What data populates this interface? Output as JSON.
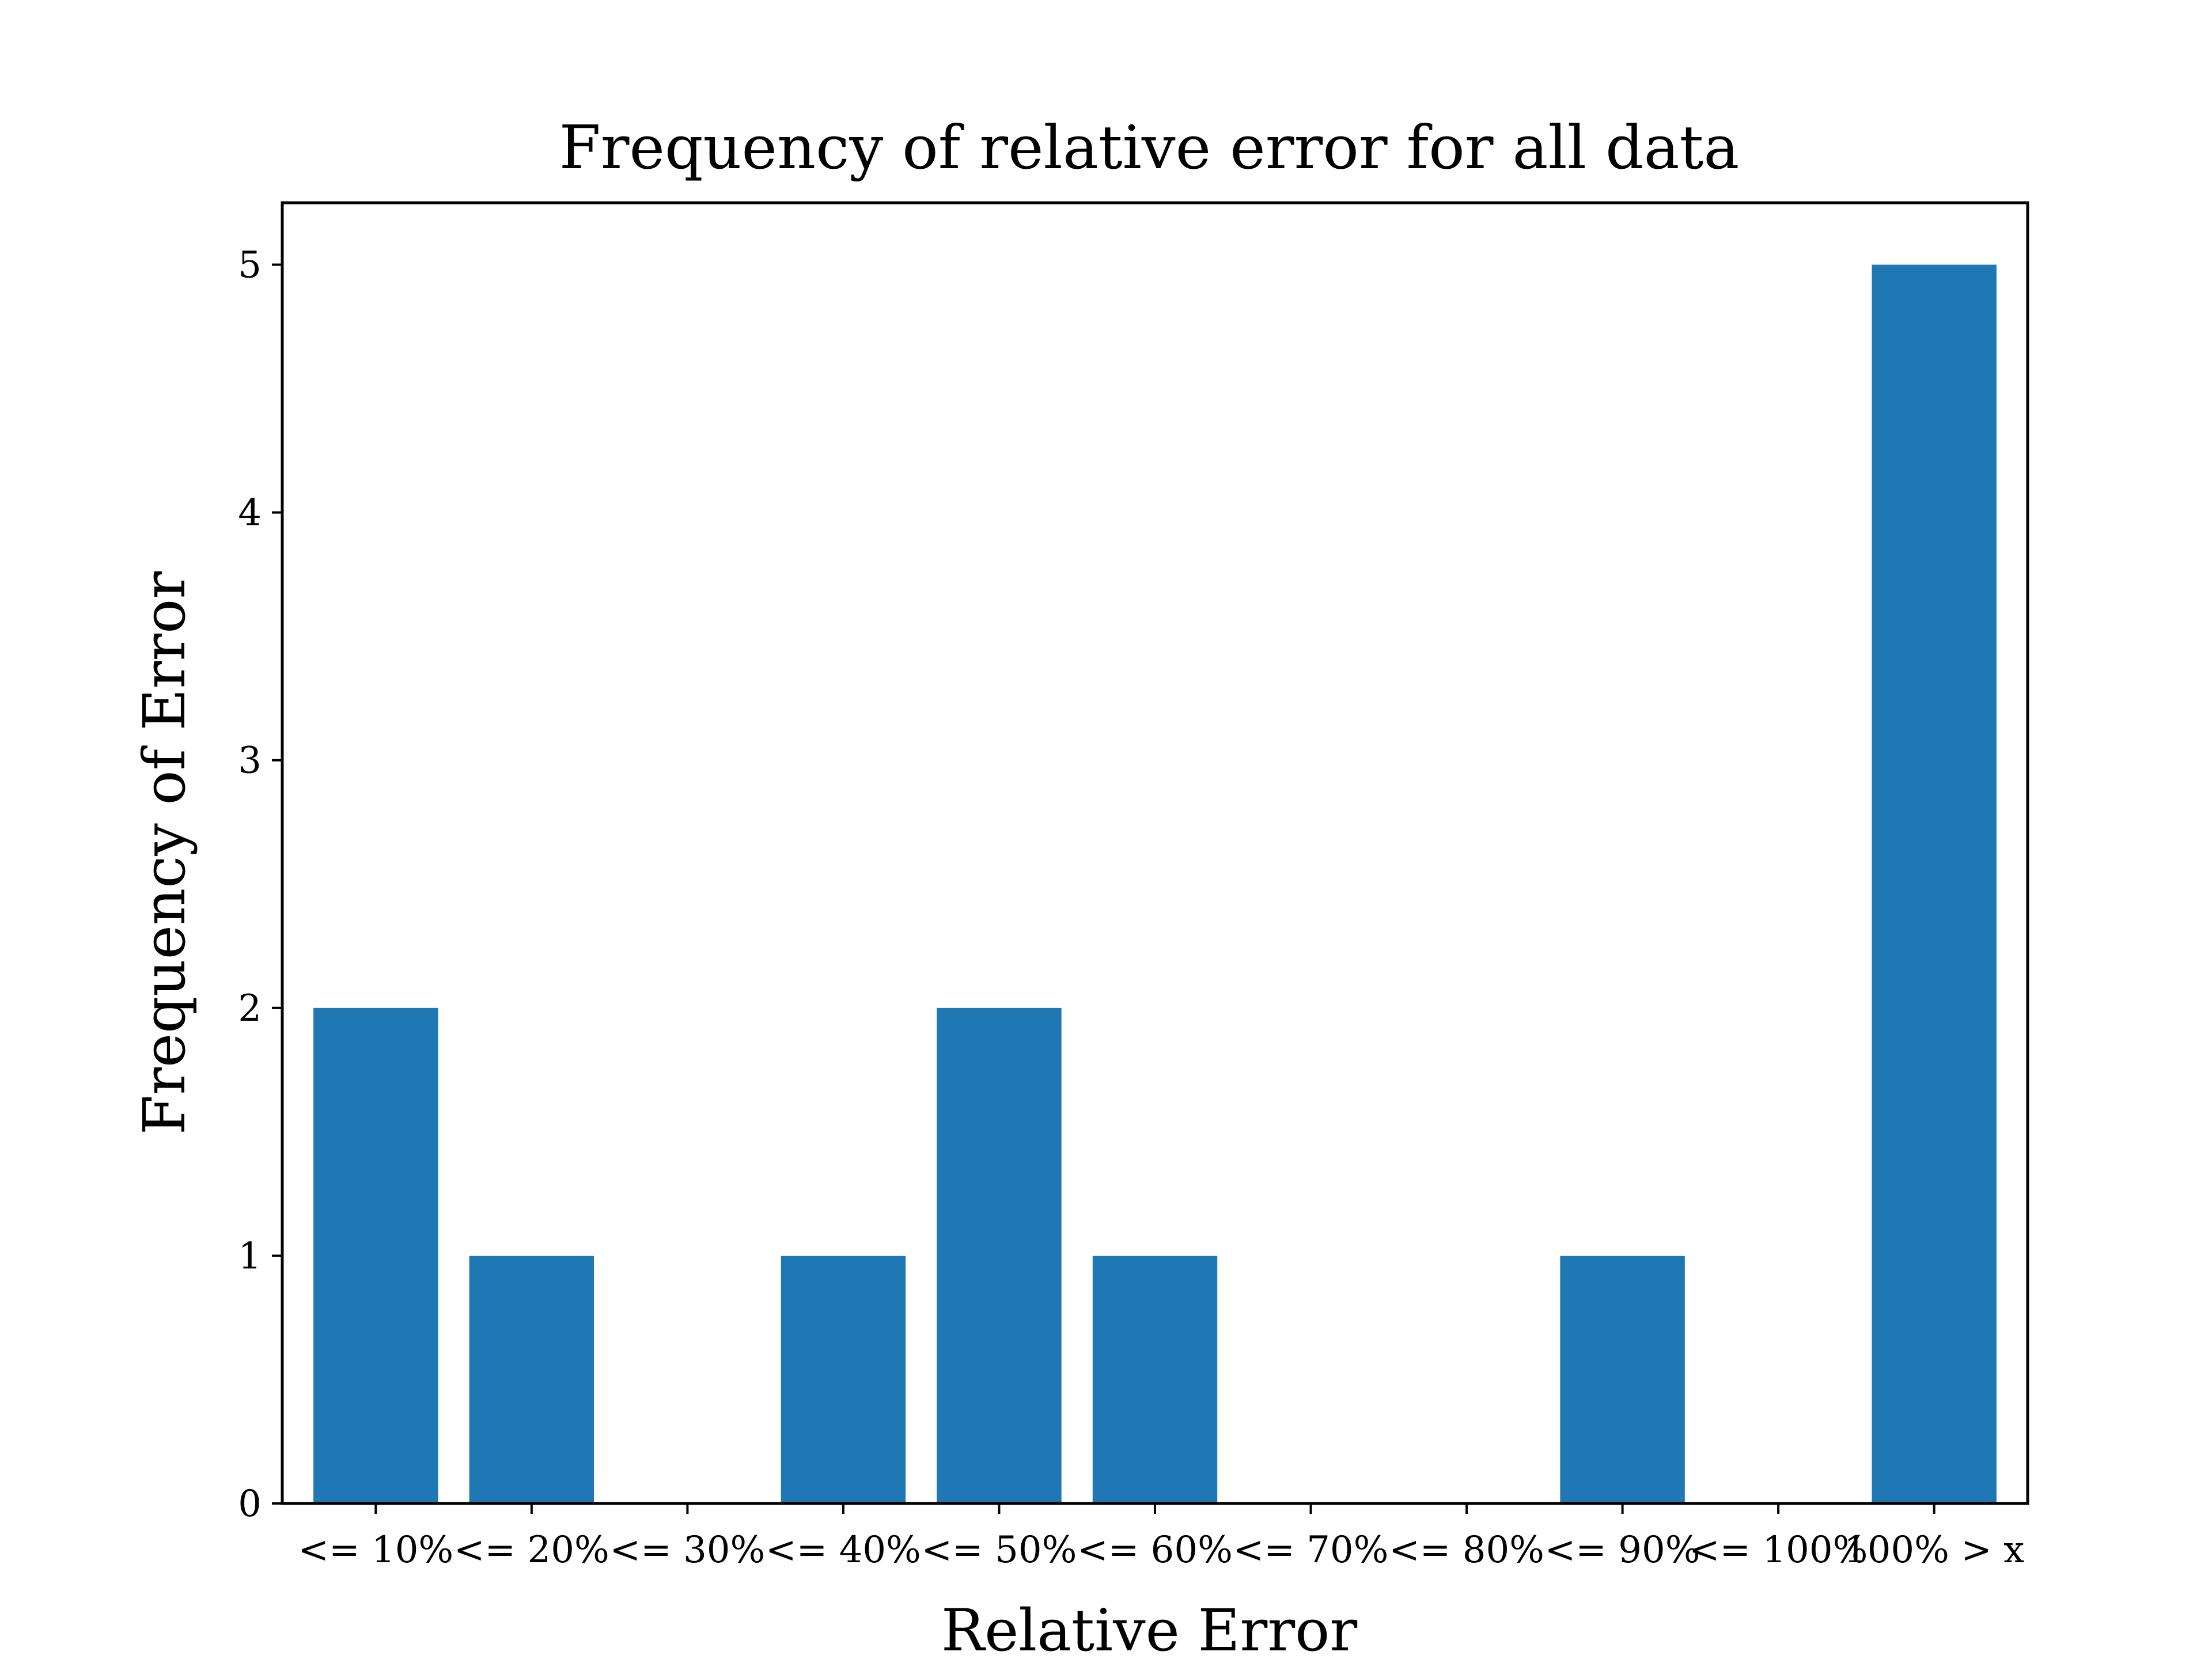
{
  "chart_data": {
    "type": "bar",
    "title": "Frequency of relative error for all data",
    "xlabel": "Relative Error",
    "ylabel": "Frequency of Error",
    "categories": [
      "<= 10%",
      "<= 20%",
      "<= 30%",
      "<= 40%",
      "<= 50%",
      "<= 60%",
      "<= 70%",
      "<= 80%",
      "<= 90%",
      "<= 100%",
      "100% > x"
    ],
    "values": [
      2,
      1,
      0,
      1,
      2,
      1,
      0,
      0,
      1,
      0,
      5
    ],
    "ylim": [
      0,
      5.25
    ],
    "yticks": [
      0,
      1,
      2,
      3,
      4,
      5
    ],
    "grid": false,
    "legend": "none",
    "bar_color": "#1f77b4",
    "axes_color": "#000000",
    "background": "#ffffff"
  }
}
